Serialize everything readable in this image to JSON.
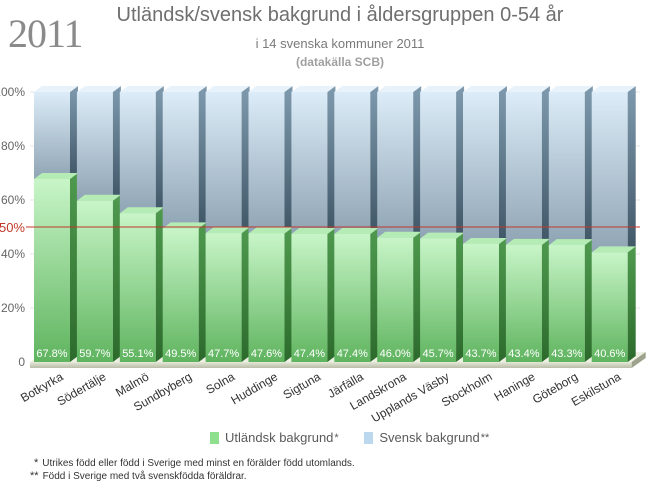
{
  "header": {
    "year": "2011",
    "title": "Utländsk/svensk bakgrund i åldersgruppen 0-54 år",
    "subtitle": "i 14 svenska kommuner 2011",
    "source": "(datakälla SCB)"
  },
  "legend": {
    "items": [
      {
        "label": "Utländsk bakgrund",
        "mark": "*"
      },
      {
        "label": "Svensk bakgrund",
        "mark": "**"
      }
    ]
  },
  "notes": [
    {
      "mark": "*",
      "text": "Utrikes född eller född i Sverige med minst en förälder född utomlands."
    },
    {
      "mark": "**",
      "text": "Född i Sverige med två svenskfödda föräldrar."
    }
  ],
  "colors": {
    "foreign_top": "#c8f5c8",
    "foreign_bottom": "#5fb45f",
    "swedish_top": "#dcecf8",
    "swedish_bottom": "#8fa4b4",
    "reference_line": "#c0392b"
  },
  "chart_data": {
    "type": "bar",
    "stacked": true,
    "percent": true,
    "categories": [
      "Botkyrka",
      "Södertälje",
      "Malmö",
      "Sundbyberg",
      "Solna",
      "Huddinge",
      "Sigtuna",
      "Järfälla",
      "Landskrona",
      "Upplands Väsby",
      "Stockholm",
      "Haninge",
      "Göteborg",
      "Eskilstuna"
    ],
    "series": [
      {
        "name": "Utländsk bakgrund",
        "values": [
          67.8,
          59.7,
          55.1,
          49.5,
          47.7,
          47.6,
          47.4,
          47.4,
          46.0,
          45.7,
          43.7,
          43.4,
          43.3,
          40.6
        ]
      },
      {
        "name": "Svensk bakgrund",
        "values": [
          32.2,
          40.3,
          44.9,
          50.5,
          52.3,
          52.4,
          52.6,
          52.6,
          54.0,
          54.3,
          56.3,
          56.6,
          56.7,
          59.4
        ]
      }
    ],
    "data_labels": [
      "67.8%",
      "59.7%",
      "55.1%",
      "49.5%",
      "47.7%",
      "47.6%",
      "47.4%",
      "47.4%",
      "46.0%",
      "45.7%",
      "43.7%",
      "43.4%",
      "43.3%",
      "40.6%"
    ],
    "y_ticks": [
      0,
      20,
      40,
      60,
      80,
      100
    ],
    "y_tick_labels": [
      "0",
      "20%",
      "40%",
      "60%",
      "80%",
      "100%"
    ],
    "reference_line": {
      "value": 50,
      "label": "50%"
    },
    "ylim": [
      0,
      100
    ],
    "legend_position": "bottom"
  }
}
